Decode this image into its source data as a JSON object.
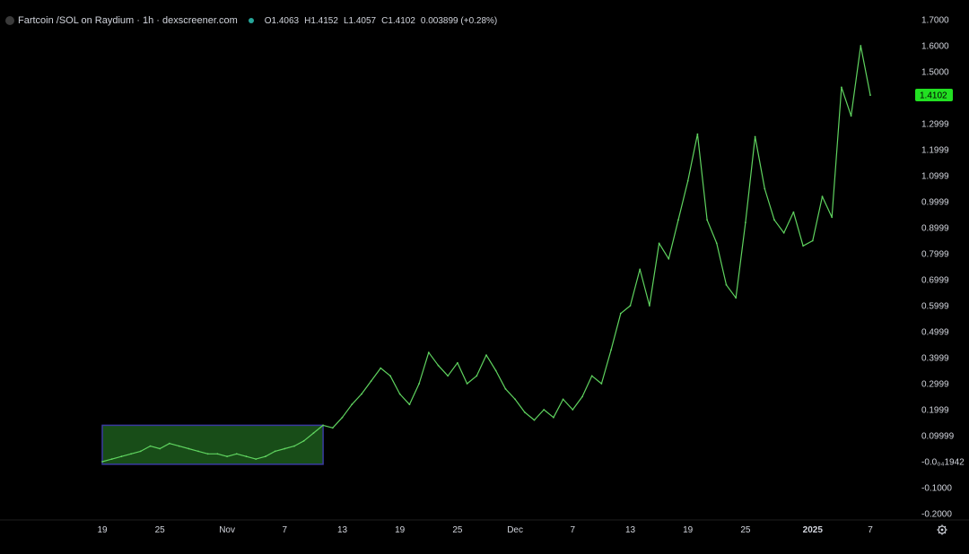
{
  "header": {
    "title": "Fartcoin /SOL on Raydium · 1h · dexscreener.com",
    "ohlc": {
      "open": "O1.4063",
      "high": "H1.4152",
      "low": "L1.4057",
      "close": "C1.4102",
      "change": "0.003899 (+0.28%)"
    }
  },
  "colors": {
    "line": "#5fd35f",
    "last_price_bg": "#22e022",
    "highlight_fill": "#1c5a1c",
    "highlight_stroke": "#3a3aa0",
    "background": "#000000",
    "text": "#d1d4dc"
  },
  "settings_icon": "gear-icon",
  "chart_data": {
    "type": "line",
    "title": "Fartcoin /SOL on Raydium · 1h · dexscreener.com",
    "y_axis": {
      "ylim": [
        -0.2,
        1.7
      ],
      "ticks": [
        {
          "value": 1.7,
          "label": "1.7000"
        },
        {
          "value": 1.6,
          "label": "1.6000"
        },
        {
          "value": 1.5,
          "label": "1.5000"
        },
        {
          "value": 1.2999,
          "label": "1.2999"
        },
        {
          "value": 1.1999,
          "label": "1.1999"
        },
        {
          "value": 1.0999,
          "label": "1.0999"
        },
        {
          "value": 0.9999,
          "label": "0.9999"
        },
        {
          "value": 0.8999,
          "label": "0.8999"
        },
        {
          "value": 0.7999,
          "label": "0.7999"
        },
        {
          "value": 0.6999,
          "label": "0.6999"
        },
        {
          "value": 0.5999,
          "label": "0.5999"
        },
        {
          "value": 0.4999,
          "label": "0.4999"
        },
        {
          "value": 0.3999,
          "label": "0.3999"
        },
        {
          "value": 0.2999,
          "label": "0.2999"
        },
        {
          "value": 0.1999,
          "label": "0.1999"
        },
        {
          "value": 0.09999,
          "label": "0.09999"
        },
        {
          "value": -0.0001942,
          "label": "-0.0₀₄1942"
        },
        {
          "value": -0.1,
          "label": "-0.1000"
        },
        {
          "value": -0.2,
          "label": "-0.2000"
        }
      ]
    },
    "x_axis": {
      "range": [
        "2024-10-19",
        "2025-01-07"
      ],
      "ticks": [
        {
          "date": "2024-10-19",
          "label": "19",
          "bold": false
        },
        {
          "date": "2024-10-25",
          "label": "25",
          "bold": false
        },
        {
          "date": "2024-11-01",
          "label": "Nov",
          "bold": false
        },
        {
          "date": "2024-11-07",
          "label": "7",
          "bold": false
        },
        {
          "date": "2024-11-13",
          "label": "13",
          "bold": false
        },
        {
          "date": "2024-11-19",
          "label": "19",
          "bold": false
        },
        {
          "date": "2024-11-25",
          "label": "25",
          "bold": false
        },
        {
          "date": "2024-12-01",
          "label": "Dec",
          "bold": false
        },
        {
          "date": "2024-12-07",
          "label": "7",
          "bold": false
        },
        {
          "date": "2024-12-13",
          "label": "13",
          "bold": false
        },
        {
          "date": "2024-12-19",
          "label": "19",
          "bold": false
        },
        {
          "date": "2024-12-25",
          "label": "25",
          "bold": false
        },
        {
          "date": "2025-01-01",
          "label": "2025",
          "bold": true
        },
        {
          "date": "2025-01-07",
          "label": "7",
          "bold": false
        }
      ]
    },
    "last_price": {
      "value": 1.4102,
      "label": "1.4102"
    },
    "highlight_range": {
      "x": [
        "2024-10-19",
        "2024-11-11"
      ],
      "y": [
        -0.01,
        0.14
      ]
    },
    "series": [
      {
        "points": [
          [
            "2024-10-19",
            0.0
          ],
          [
            "2024-10-20",
            0.01
          ],
          [
            "2024-10-21",
            0.02
          ],
          [
            "2024-10-22",
            0.03
          ],
          [
            "2024-10-23",
            0.04
          ],
          [
            "2024-10-24",
            0.06
          ],
          [
            "2024-10-25",
            0.05
          ],
          [
            "2024-10-26",
            0.07
          ],
          [
            "2024-10-27",
            0.06
          ],
          [
            "2024-10-28",
            0.05
          ],
          [
            "2024-10-29",
            0.04
          ],
          [
            "2024-10-30",
            0.03
          ],
          [
            "2024-10-31",
            0.03
          ],
          [
            "2024-11-01",
            0.02
          ],
          [
            "2024-11-02",
            0.03
          ],
          [
            "2024-11-03",
            0.02
          ],
          [
            "2024-11-04",
            0.01
          ],
          [
            "2024-11-05",
            0.02
          ],
          [
            "2024-11-06",
            0.04
          ],
          [
            "2024-11-07",
            0.05
          ],
          [
            "2024-11-08",
            0.06
          ],
          [
            "2024-11-09",
            0.08
          ],
          [
            "2024-11-10",
            0.11
          ],
          [
            "2024-11-11",
            0.14
          ],
          [
            "2024-11-12",
            0.13
          ],
          [
            "2024-11-13",
            0.17
          ],
          [
            "2024-11-14",
            0.22
          ],
          [
            "2024-11-15",
            0.26
          ],
          [
            "2024-11-16",
            0.31
          ],
          [
            "2024-11-17",
            0.36
          ],
          [
            "2024-11-18",
            0.33
          ],
          [
            "2024-11-19",
            0.26
          ],
          [
            "2024-11-20",
            0.22
          ],
          [
            "2024-11-21",
            0.3
          ],
          [
            "2024-11-22",
            0.42
          ],
          [
            "2024-11-23",
            0.37
          ],
          [
            "2024-11-24",
            0.33
          ],
          [
            "2024-11-25",
            0.38
          ],
          [
            "2024-11-26",
            0.3
          ],
          [
            "2024-11-27",
            0.33
          ],
          [
            "2024-11-28",
            0.41
          ],
          [
            "2024-11-29",
            0.35
          ],
          [
            "2024-11-30",
            0.28
          ],
          [
            "2024-12-01",
            0.24
          ],
          [
            "2024-12-02",
            0.19
          ],
          [
            "2024-12-03",
            0.16
          ],
          [
            "2024-12-04",
            0.2
          ],
          [
            "2024-12-05",
            0.17
          ],
          [
            "2024-12-06",
            0.24
          ],
          [
            "2024-12-07",
            0.2
          ],
          [
            "2024-12-08",
            0.25
          ],
          [
            "2024-12-09",
            0.33
          ],
          [
            "2024-12-10",
            0.3
          ],
          [
            "2024-12-11",
            0.43
          ],
          [
            "2024-12-12",
            0.57
          ],
          [
            "2024-12-13",
            0.6
          ],
          [
            "2024-12-14",
            0.74
          ],
          [
            "2024-12-15",
            0.6
          ],
          [
            "2024-12-16",
            0.84
          ],
          [
            "2024-12-17",
            0.78
          ],
          [
            "2024-12-18",
            0.93
          ],
          [
            "2024-12-19",
            1.08
          ],
          [
            "2024-12-20",
            1.26
          ],
          [
            "2024-12-21",
            0.93
          ],
          [
            "2024-12-22",
            0.84
          ],
          [
            "2024-12-23",
            0.68
          ],
          [
            "2024-12-24",
            0.63
          ],
          [
            "2024-12-25",
            0.92
          ],
          [
            "2024-12-26",
            1.25
          ],
          [
            "2024-12-27",
            1.05
          ],
          [
            "2024-12-28",
            0.93
          ],
          [
            "2024-12-29",
            0.88
          ],
          [
            "2024-12-30",
            0.96
          ],
          [
            "2024-12-31",
            0.83
          ],
          [
            "2025-01-01",
            0.85
          ],
          [
            "2025-01-02",
            1.02
          ],
          [
            "2025-01-03",
            0.94
          ],
          [
            "2025-01-04",
            1.44
          ],
          [
            "2025-01-05",
            1.33
          ],
          [
            "2025-01-06",
            1.6
          ],
          [
            "2025-01-07",
            1.41
          ]
        ]
      }
    ]
  }
}
